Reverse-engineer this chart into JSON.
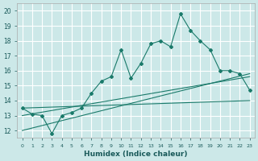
{
  "xlabel": "Humidex (Indice chaleur)",
  "xlim": [
    -0.5,
    23.5
  ],
  "ylim": [
    11.5,
    20.5
  ],
  "yticks": [
    12,
    13,
    14,
    15,
    16,
    17,
    18,
    19,
    20
  ],
  "xticks": [
    0,
    1,
    2,
    3,
    4,
    5,
    6,
    7,
    8,
    9,
    10,
    11,
    12,
    13,
    14,
    15,
    16,
    17,
    18,
    19,
    20,
    21,
    22,
    23
  ],
  "background_color": "#cce8e8",
  "grid_color": "#ffffff",
  "line_color": "#1a7a6a",
  "line1_x": [
    0,
    1,
    2,
    3,
    4,
    5,
    6,
    7,
    8,
    9,
    10,
    11,
    12,
    13,
    14,
    15,
    16,
    17,
    18,
    19,
    20,
    21,
    22,
    23
  ],
  "line1_y": [
    13.5,
    13.1,
    13.0,
    11.8,
    13.0,
    13.2,
    13.5,
    14.5,
    15.3,
    15.6,
    17.4,
    15.5,
    16.5,
    17.8,
    18.0,
    17.6,
    19.8,
    18.7,
    18.0,
    17.4,
    16.0,
    16.0,
    15.8,
    14.7
  ],
  "line2_x": [
    0,
    23
  ],
  "line2_y": [
    13.5,
    14.0
  ],
  "line3_x": [
    0,
    23
  ],
  "line3_y": [
    13.0,
    15.6
  ],
  "line4_x": [
    0,
    23
  ],
  "line4_y": [
    12.0,
    15.8
  ]
}
